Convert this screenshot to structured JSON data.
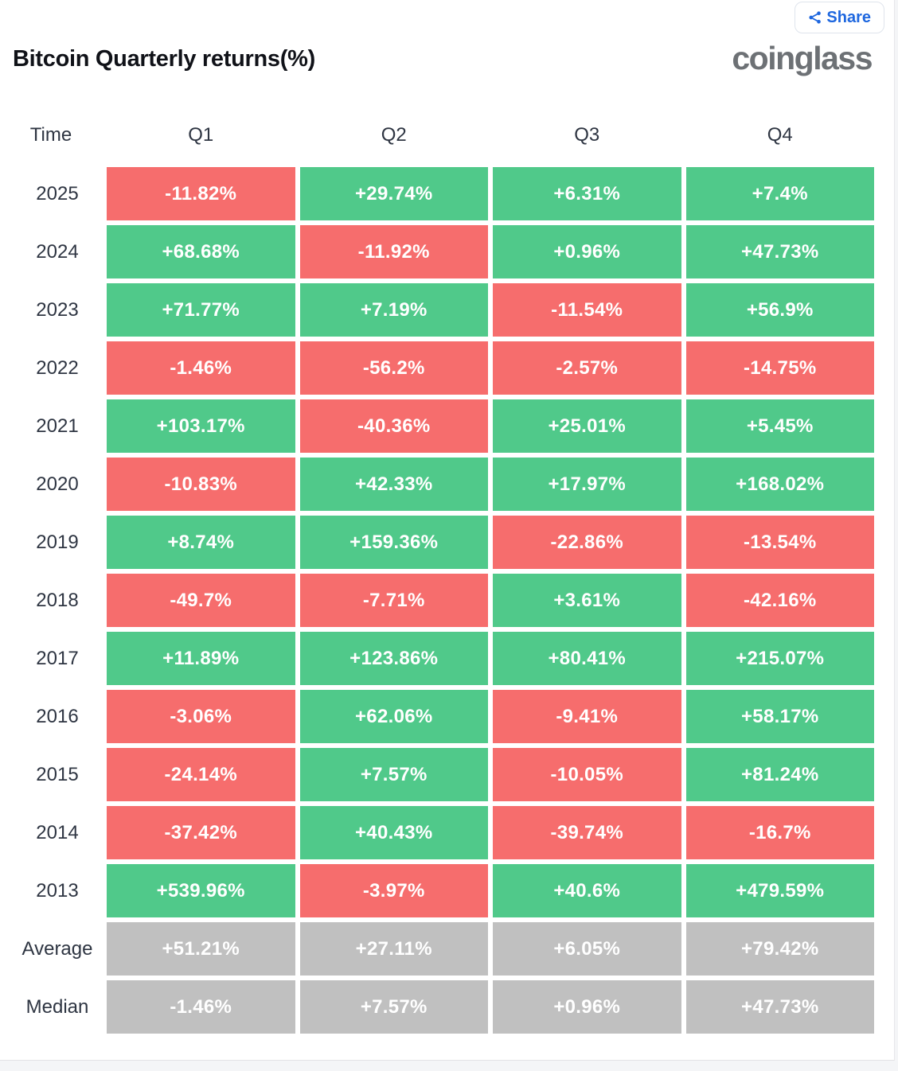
{
  "page": {
    "title": "Bitcoin Quarterly returns(%)",
    "logo_text": "coinglass",
    "share_label": "Share"
  },
  "colors": {
    "positive": "#50c98a",
    "negative": "#f66d6d",
    "neutral": "#c0c0c0",
    "accent_blue": "#1e67df",
    "header_text": "#2e3542",
    "title_text": "#101218",
    "logo_gray": "#6d7175"
  },
  "table": {
    "columns": [
      "Time",
      "Q1",
      "Q2",
      "Q3",
      "Q4"
    ],
    "rows": [
      {
        "label": "2025",
        "neutral": false,
        "cells": [
          "-11.82%",
          "+29.74%",
          "+6.31%",
          "+7.4%"
        ]
      },
      {
        "label": "2024",
        "neutral": false,
        "cells": [
          "+68.68%",
          "-11.92%",
          "+0.96%",
          "+47.73%"
        ]
      },
      {
        "label": "2023",
        "neutral": false,
        "cells": [
          "+71.77%",
          "+7.19%",
          "-11.54%",
          "+56.9%"
        ]
      },
      {
        "label": "2022",
        "neutral": false,
        "cells": [
          "-1.46%",
          "-56.2%",
          "-2.57%",
          "-14.75%"
        ]
      },
      {
        "label": "2021",
        "neutral": false,
        "cells": [
          "+103.17%",
          "-40.36%",
          "+25.01%",
          "+5.45%"
        ]
      },
      {
        "label": "2020",
        "neutral": false,
        "cells": [
          "-10.83%",
          "+42.33%",
          "+17.97%",
          "+168.02%"
        ]
      },
      {
        "label": "2019",
        "neutral": false,
        "cells": [
          "+8.74%",
          "+159.36%",
          "-22.86%",
          "-13.54%"
        ]
      },
      {
        "label": "2018",
        "neutral": false,
        "cells": [
          "-49.7%",
          "-7.71%",
          "+3.61%",
          "-42.16%"
        ]
      },
      {
        "label": "2017",
        "neutral": false,
        "cells": [
          "+11.89%",
          "+123.86%",
          "+80.41%",
          "+215.07%"
        ]
      },
      {
        "label": "2016",
        "neutral": false,
        "cells": [
          "-3.06%",
          "+62.06%",
          "-9.41%",
          "+58.17%"
        ]
      },
      {
        "label": "2015",
        "neutral": false,
        "cells": [
          "-24.14%",
          "+7.57%",
          "-10.05%",
          "+81.24%"
        ]
      },
      {
        "label": "2014",
        "neutral": false,
        "cells": [
          "-37.42%",
          "+40.43%",
          "-39.74%",
          "-16.7%"
        ]
      },
      {
        "label": "2013",
        "neutral": false,
        "cells": [
          "+539.96%",
          "-3.97%",
          "+40.6%",
          "+479.59%"
        ]
      },
      {
        "label": "Average",
        "neutral": true,
        "cells": [
          "+51.21%",
          "+27.11%",
          "+6.05%",
          "+79.42%"
        ]
      },
      {
        "label": "Median",
        "neutral": true,
        "cells": [
          "-1.46%",
          "+7.57%",
          "+0.96%",
          "+47.73%"
        ]
      }
    ]
  },
  "chart_data": {
    "type": "heatmap",
    "title": "Bitcoin Quarterly returns(%)",
    "columns": [
      "Q1",
      "Q2",
      "Q3",
      "Q4"
    ],
    "rows": [
      "2025",
      "2024",
      "2023",
      "2022",
      "2021",
      "2020",
      "2019",
      "2018",
      "2017",
      "2016",
      "2015",
      "2014",
      "2013",
      "Average",
      "Median"
    ],
    "values": [
      [
        -11.82,
        29.74,
        6.31,
        7.4
      ],
      [
        68.68,
        -11.92,
        0.96,
        47.73
      ],
      [
        71.77,
        7.19,
        -11.54,
        56.9
      ],
      [
        -1.46,
        -56.2,
        -2.57,
        -14.75
      ],
      [
        103.17,
        -40.36,
        25.01,
        5.45
      ],
      [
        -10.83,
        42.33,
        17.97,
        168.02
      ],
      [
        8.74,
        159.36,
        -22.86,
        -13.54
      ],
      [
        -49.7,
        -7.71,
        3.61,
        -42.16
      ],
      [
        11.89,
        123.86,
        80.41,
        215.07
      ],
      [
        -3.06,
        62.06,
        -9.41,
        58.17
      ],
      [
        -24.14,
        7.57,
        -10.05,
        81.24
      ],
      [
        -37.42,
        40.43,
        -39.74,
        -16.7
      ],
      [
        539.96,
        -3.97,
        40.6,
        479.59
      ],
      [
        51.21,
        27.11,
        6.05,
        79.42
      ],
      [
        -1.46,
        7.57,
        0.96,
        47.73
      ]
    ],
    "legend": "green = positive return, red = negative return, gray = summary rows (Average, Median)",
    "units": "percent"
  }
}
